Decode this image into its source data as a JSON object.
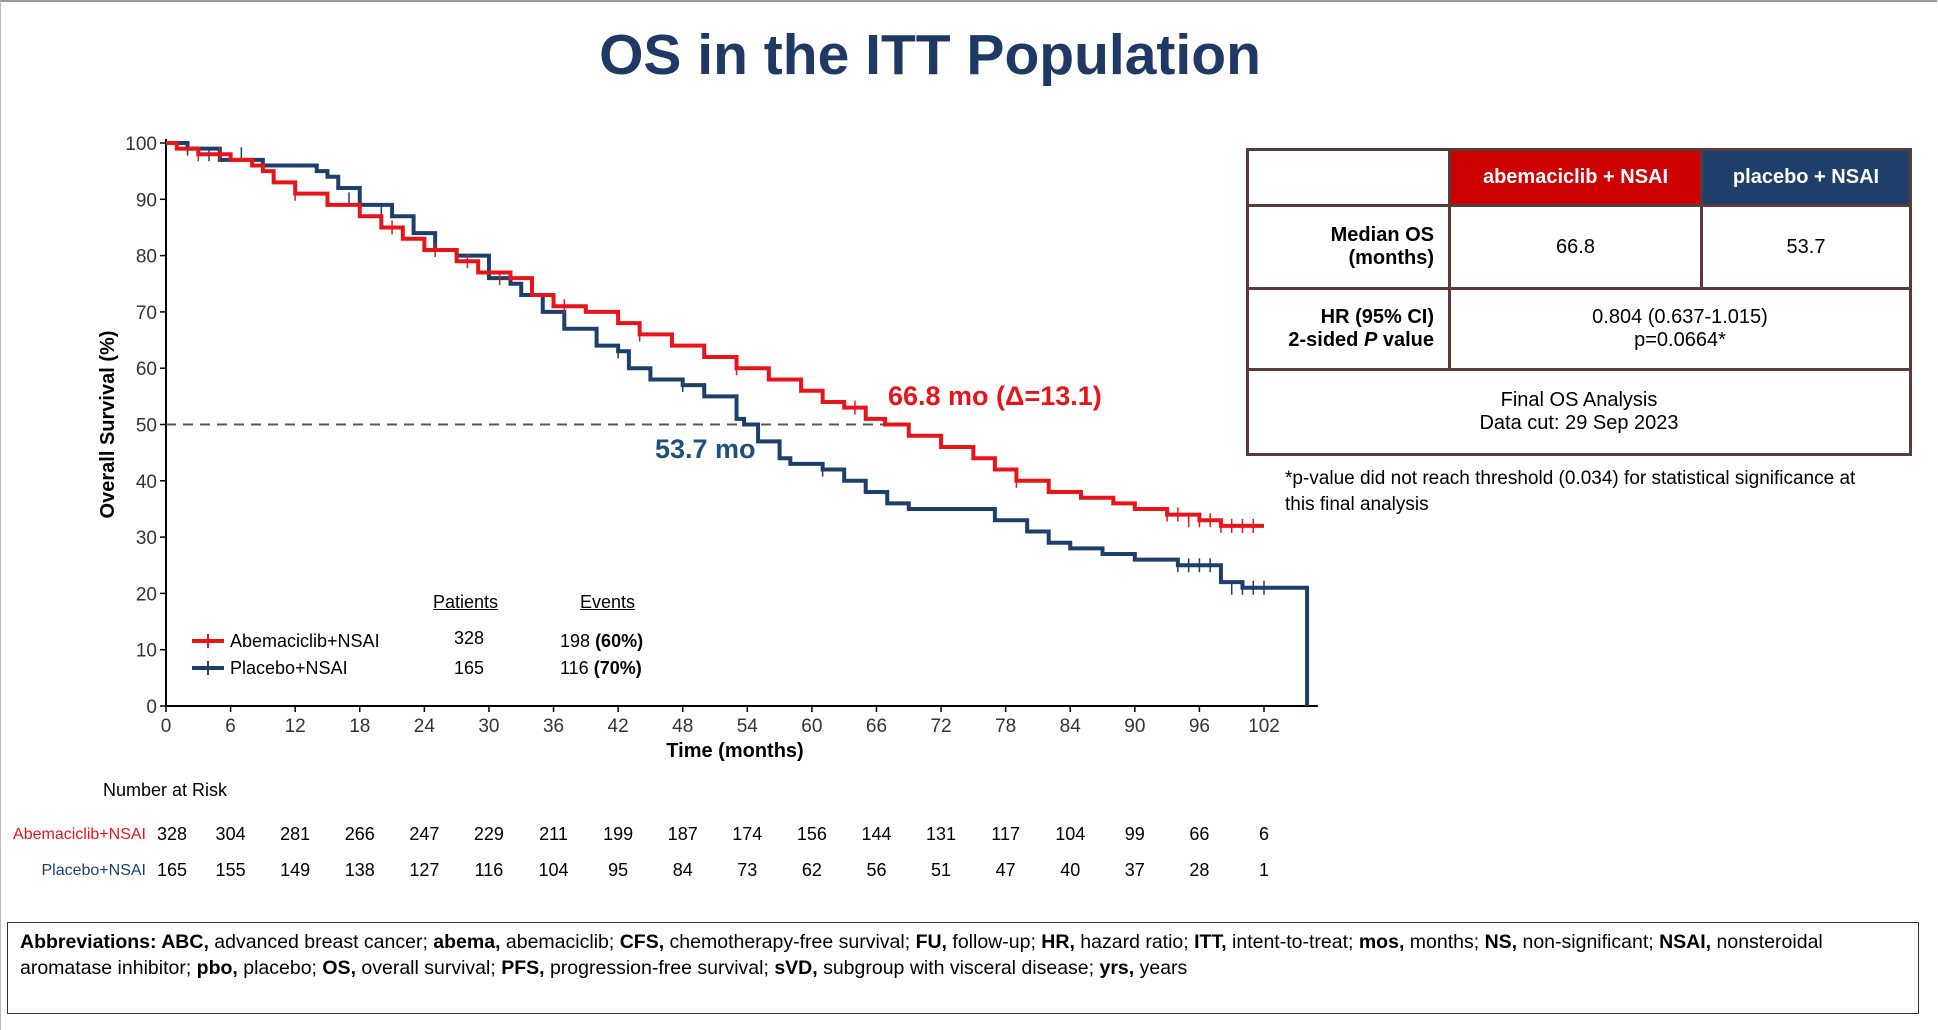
{
  "title": "OS in the ITT Population",
  "chart_data": {
    "type": "line",
    "subtype": "kaplan-meier",
    "xlabel": "Time (months)",
    "ylabel": "Overall Survival (%)",
    "xlim": [
      0,
      107
    ],
    "ylim": [
      0,
      100
    ],
    "xticks": [
      0,
      6,
      12,
      18,
      24,
      30,
      36,
      42,
      48,
      54,
      60,
      66,
      72,
      78,
      84,
      90,
      96,
      102
    ],
    "yticks": [
      0,
      10,
      20,
      30,
      40,
      50,
      60,
      70,
      80,
      90,
      100
    ],
    "grid": false,
    "reference_line": {
      "y": 50,
      "style": "dashed"
    },
    "series": [
      {
        "name": "Abemaciclib+NSAI",
        "color": "#e8141b",
        "points": [
          [
            0,
            100
          ],
          [
            1,
            99
          ],
          [
            3,
            98
          ],
          [
            6,
            97
          ],
          [
            8,
            96
          ],
          [
            9,
            95
          ],
          [
            10,
            93
          ],
          [
            12,
            91
          ],
          [
            15,
            89
          ],
          [
            18,
            87
          ],
          [
            20,
            85
          ],
          [
            22,
            83
          ],
          [
            24,
            81
          ],
          [
            27,
            79
          ],
          [
            29,
            77
          ],
          [
            32,
            76
          ],
          [
            34,
            73
          ],
          [
            36,
            71
          ],
          [
            39,
            70
          ],
          [
            42,
            68
          ],
          [
            44,
            66
          ],
          [
            47,
            64
          ],
          [
            50,
            62
          ],
          [
            53,
            60
          ],
          [
            56,
            58
          ],
          [
            59,
            56
          ],
          [
            61,
            54
          ],
          [
            63,
            53
          ],
          [
            65,
            51
          ],
          [
            66.8,
            50
          ],
          [
            69,
            48
          ],
          [
            72,
            46
          ],
          [
            75,
            44
          ],
          [
            77,
            42
          ],
          [
            79,
            40
          ],
          [
            82,
            38
          ],
          [
            85,
            37
          ],
          [
            88,
            36
          ],
          [
            90,
            35
          ],
          [
            93,
            34
          ],
          [
            96,
            33
          ],
          [
            98,
            32
          ],
          [
            102,
            32
          ]
        ],
        "censored": [
          [
            3,
            98
          ],
          [
            5,
            98
          ],
          [
            12,
            91
          ],
          [
            21,
            85
          ],
          [
            25,
            81
          ],
          [
            28,
            79
          ],
          [
            31,
            76
          ],
          [
            37,
            71
          ],
          [
            44,
            66
          ],
          [
            53,
            60
          ],
          [
            64,
            53
          ],
          [
            79,
            40
          ],
          [
            93,
            34
          ],
          [
            94,
            34
          ],
          [
            95,
            33
          ],
          [
            96,
            33
          ],
          [
            97,
            33
          ],
          [
            98,
            32
          ],
          [
            99,
            32
          ],
          [
            100,
            32
          ],
          [
            101,
            32
          ]
        ]
      },
      {
        "name": "Placebo+NSAI",
        "color": "#1f3f6b",
        "points": [
          [
            0,
            100
          ],
          [
            2,
            99
          ],
          [
            5,
            97
          ],
          [
            9,
            96
          ],
          [
            14,
            95
          ],
          [
            15,
            94
          ],
          [
            16,
            92
          ],
          [
            18,
            89
          ],
          [
            21,
            87
          ],
          [
            23,
            84
          ],
          [
            25,
            81
          ],
          [
            27,
            80
          ],
          [
            30,
            76
          ],
          [
            32,
            75
          ],
          [
            33,
            73
          ],
          [
            35,
            70
          ],
          [
            37,
            67
          ],
          [
            39,
            67
          ],
          [
            40,
            64
          ],
          [
            42,
            63
          ],
          [
            43,
            60
          ],
          [
            45,
            58
          ],
          [
            48,
            57
          ],
          [
            50,
            55
          ],
          [
            53,
            51
          ],
          [
            53.7,
            50
          ],
          [
            55,
            47
          ],
          [
            57,
            44
          ],
          [
            58,
            43
          ],
          [
            61,
            42
          ],
          [
            63,
            40
          ],
          [
            65,
            38
          ],
          [
            67,
            36
          ],
          [
            69,
            35
          ],
          [
            76,
            35
          ],
          [
            77,
            33
          ],
          [
            80,
            31
          ],
          [
            82,
            29
          ],
          [
            84,
            28
          ],
          [
            87,
            27
          ],
          [
            90,
            26
          ],
          [
            94,
            25
          ],
          [
            98,
            22
          ],
          [
            100,
            21
          ],
          [
            106,
            21
          ],
          [
            106,
            0
          ]
        ],
        "censored": [
          [
            2,
            99
          ],
          [
            4,
            98
          ],
          [
            7,
            98
          ],
          [
            17,
            90
          ],
          [
            20,
            88
          ],
          [
            42,
            63
          ],
          [
            48,
            57
          ],
          [
            61,
            42
          ],
          [
            94,
            25
          ],
          [
            95,
            25
          ],
          [
            96,
            25
          ],
          [
            97,
            25
          ],
          [
            99,
            21
          ],
          [
            100,
            21
          ],
          [
            101,
            21
          ],
          [
            102,
            21
          ]
        ]
      }
    ],
    "annotations": [
      {
        "text": "66.8 mo (Δ=13.1)",
        "color": "#e8141b"
      },
      {
        "text": "53.7 mo",
        "color": "#1f5078"
      }
    ]
  },
  "legend": {
    "patients_header": "Patients",
    "events_header": "Events",
    "rows": [
      {
        "label": "Abemaciclib+NSAI",
        "patients": "328",
        "events_n": "198",
        "events_pct": "(60%)"
      },
      {
        "label": "Placebo+NSAI",
        "patients": "165",
        "events_n": "116",
        "events_pct": "(70%)"
      }
    ]
  },
  "results_table": {
    "col_a": "abemaciclib + NSAI",
    "col_p": "placebo + NSAI",
    "median_label_1": "Median OS",
    "median_label_2": "(months)",
    "median_a": "66.8",
    "median_p": "53.7",
    "hr_label_1": "HR (95% CI)",
    "hr_label_2a": "2-sided ",
    "hr_label_2b": "P",
    "hr_label_2c": " value",
    "hr_value": "0.804 (0.637-1.015)",
    "p_value": "p=0.0664*",
    "final_1": "Final OS Analysis",
    "final_2": "Data cut: 29 Sep 2023",
    "colors": {
      "abema": "#cc0000",
      "placebo": "#1f3f6b"
    }
  },
  "footnote": "*p-value did not reach threshold (0.034) for statistical significance at this final analysis",
  "number_at_risk": {
    "title": "Number at Risk",
    "rows": [
      {
        "label": "Abemaciclib+NSAI",
        "color": "#e8141b",
        "values": [
          "328",
          "304",
          "281",
          "266",
          "247",
          "229",
          "211",
          "199",
          "187",
          "174",
          "156",
          "144",
          "131",
          "117",
          "104",
          "99",
          "66",
          "6"
        ]
      },
      {
        "label": "Placebo+NSAI",
        "color": "#1f3f6b",
        "values": [
          "165",
          "155",
          "149",
          "138",
          "127",
          "116",
          "104",
          "95",
          "84",
          "73",
          "62",
          "56",
          "51",
          "47",
          "40",
          "37",
          "28",
          "1"
        ]
      }
    ]
  },
  "abbreviations": {
    "heading": "Abbreviations: ",
    "items": [
      {
        "term": "ABC,",
        "def": " advanced breast cancer; "
      },
      {
        "term": "abema,",
        "def": " abemaciclib; "
      },
      {
        "term": "CFS,",
        "def": " chemotherapy-free survival; "
      },
      {
        "term": "FU,",
        "def": " follow-up; "
      },
      {
        "term": "HR,",
        "def": " hazard ratio; "
      },
      {
        "term": "ITT,",
        "def": " intent-to-treat; "
      },
      {
        "term": "mos,",
        "def": " months; "
      },
      {
        "term": "NS,",
        "def": " non-significant; "
      },
      {
        "term": "NSAI,",
        "def": " nonsteroidal aromatase inhibitor; "
      },
      {
        "term": "pbo,",
        "def": " placebo; "
      },
      {
        "term": "OS,",
        "def": " overall survival; "
      },
      {
        "term": "PFS,",
        "def": " progression-free survival; "
      },
      {
        "term": "sVD,",
        "def": " subgroup with visceral disease; "
      },
      {
        "term": "yrs,",
        "def": " years"
      }
    ]
  }
}
